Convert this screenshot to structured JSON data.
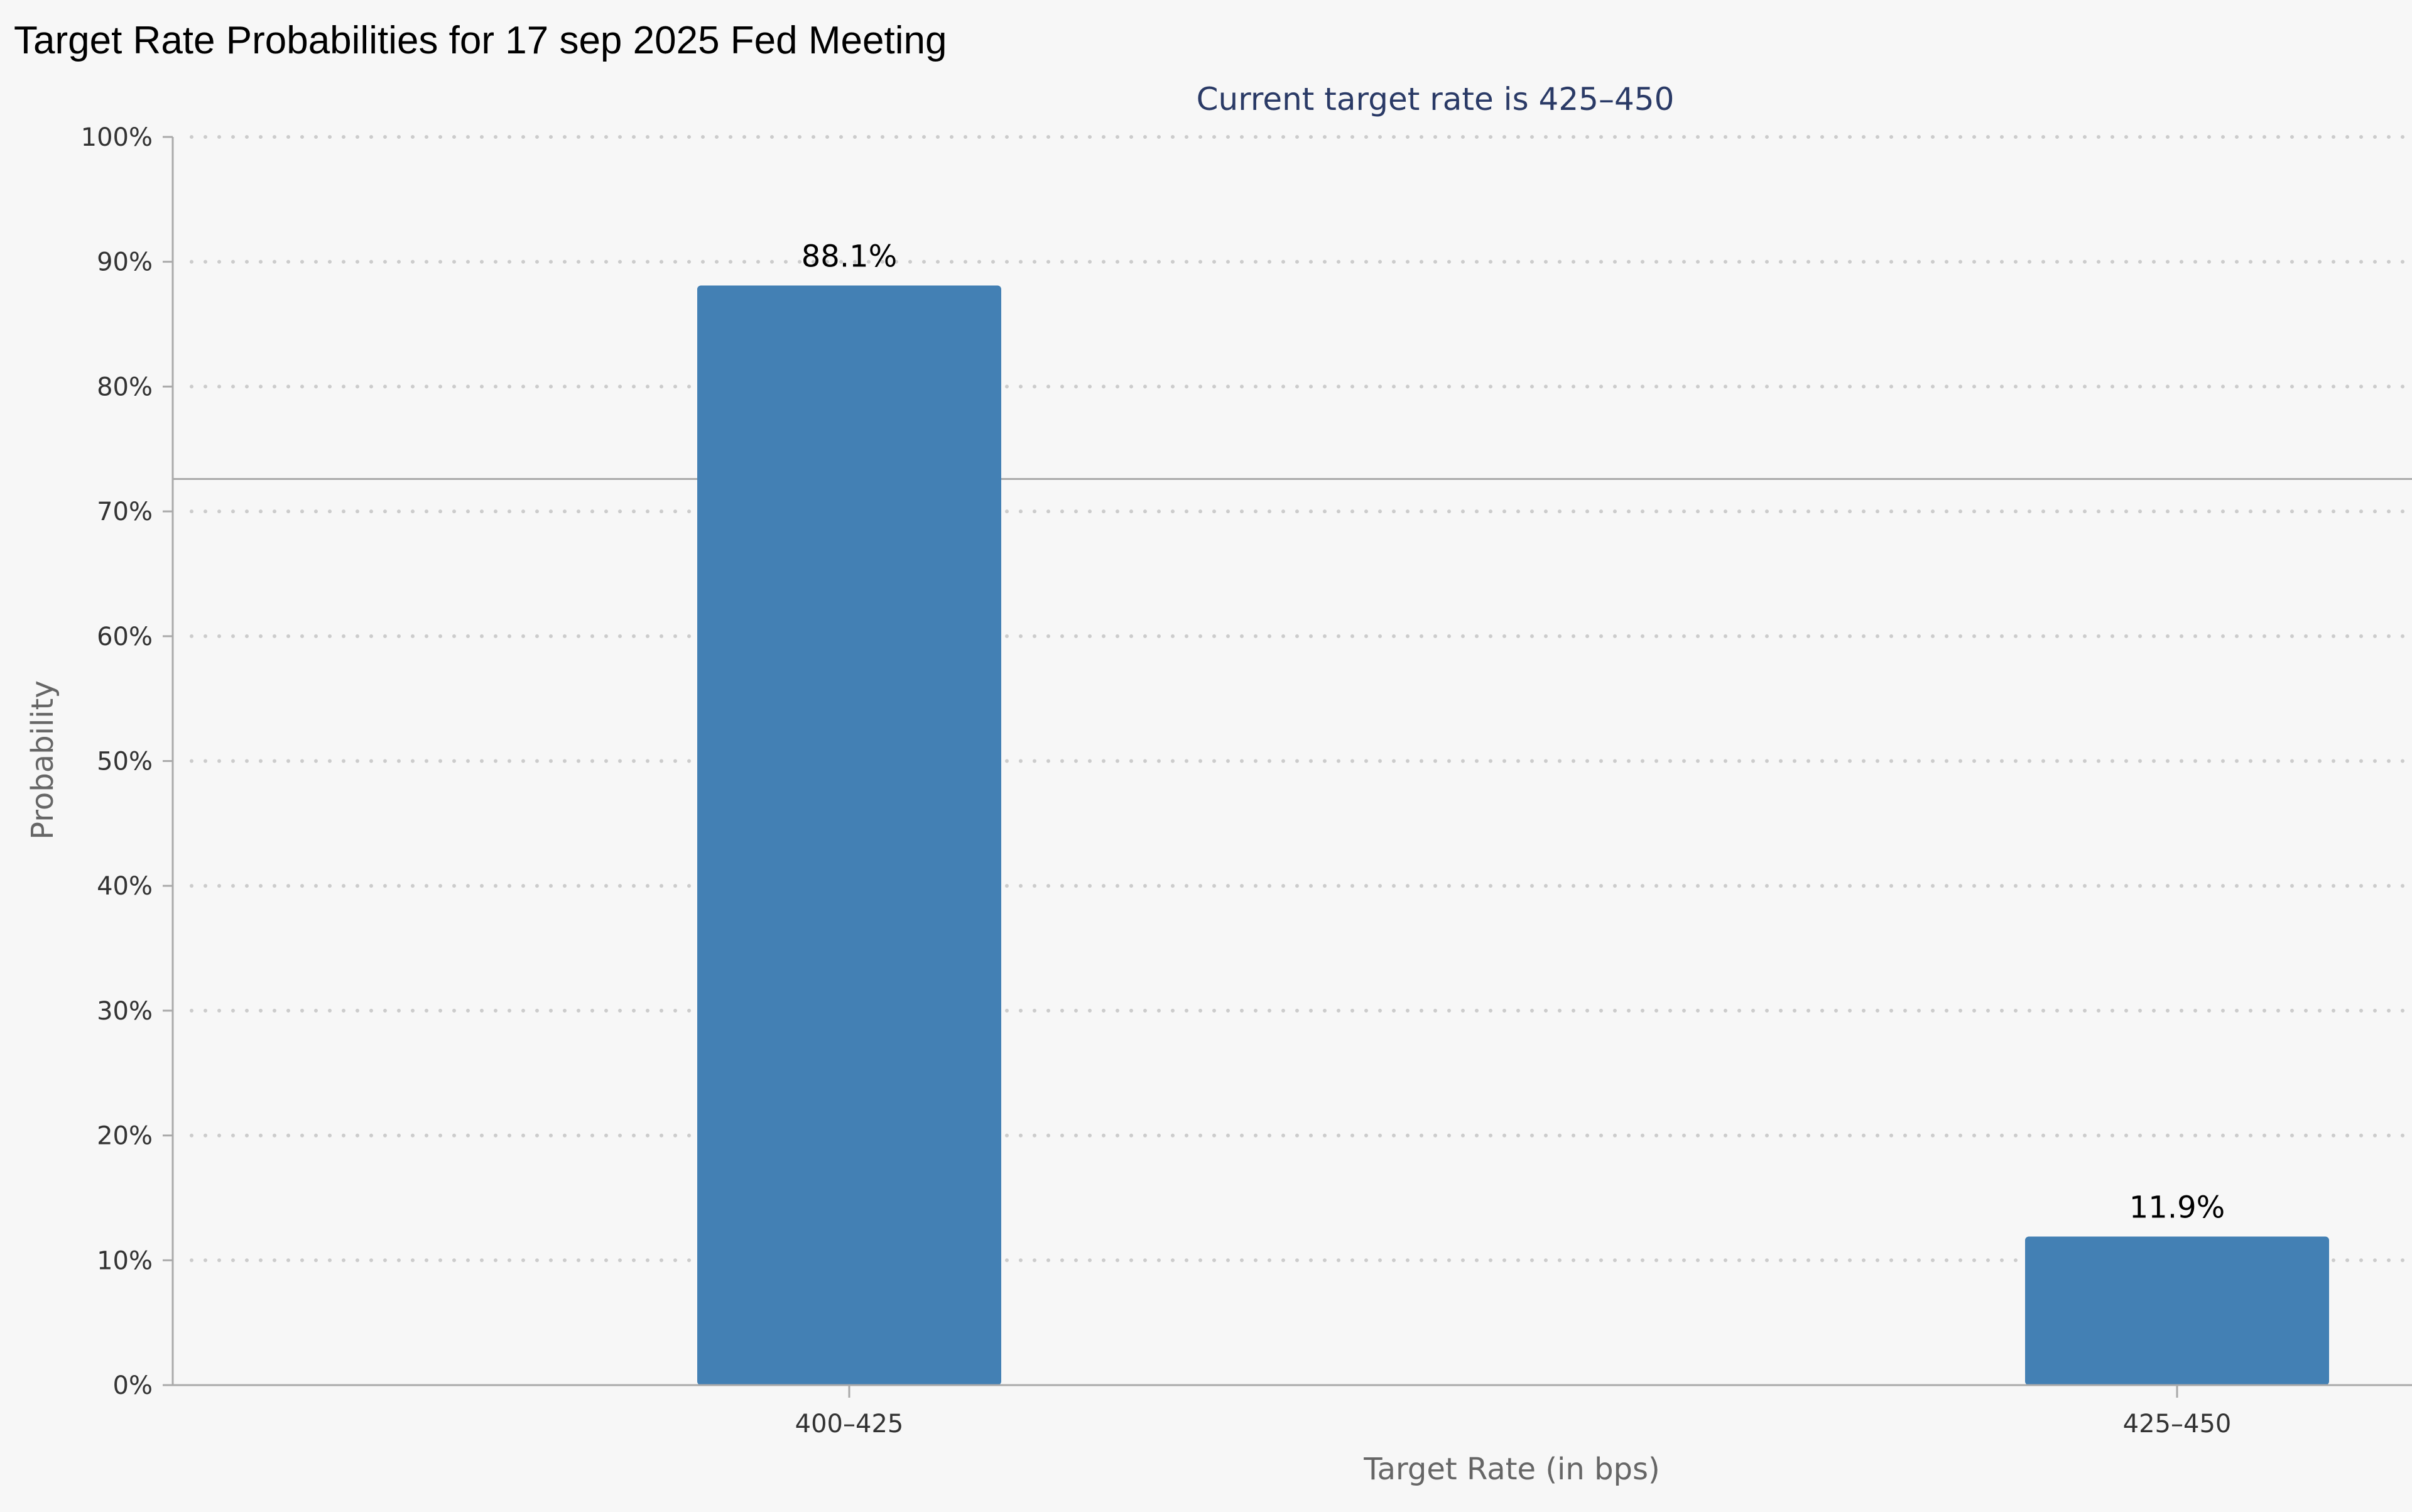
{
  "title": "Target Rate Probabilities for 17 sep 2025 Fed Meeting",
  "colors": {
    "bar": "#4380b4",
    "subtitle": "#2a3a66",
    "grid": "#cccccc",
    "axis": "#aaaaaa",
    "background": "#f7f7f7"
  },
  "chart_data": {
    "type": "bar",
    "subtitle": "Current target rate is 425–450",
    "categories": [
      "400–425",
      "425–450"
    ],
    "values": [
      88.1,
      11.9
    ],
    "data_labels": [
      "88.1%",
      "11.9%"
    ],
    "ylabel": "Probability",
    "xlabel": "Target Rate (in bps)",
    "ylim": [
      0,
      100
    ],
    "y_ticks": [
      0,
      10,
      20,
      30,
      40,
      50,
      60,
      70,
      80,
      90,
      100
    ],
    "y_tick_labels": [
      "0%",
      "10%",
      "20%",
      "30%",
      "40%",
      "50%",
      "60%",
      "70%",
      "80%",
      "90%",
      "100%"
    ],
    "grid": true,
    "grid_style": "dotted",
    "legend": "none",
    "reference_line_y": 72.6
  }
}
